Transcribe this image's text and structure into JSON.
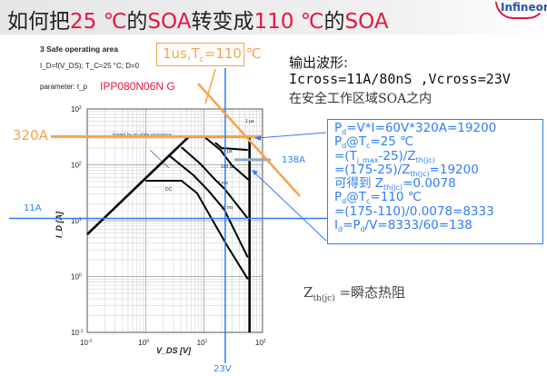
{
  "header": {
    "title_parts": [
      "如何把",
      "25 ℃",
      "的",
      "SOA",
      "转变成",
      "110 ℃",
      "的",
      "SOA"
    ],
    "logo_text": "Infineon"
  },
  "datasheet": {
    "section_title": "3 Safe operating area",
    "condition": "I_D=f(V_DS); T_C=25 °C; D=0",
    "parameter": "parameter: t_p",
    "part_number": "IPP080N06N G"
  },
  "tc_box": {
    "prefix": "1us,T",
    "sub": "c",
    "suffix": "=110 ℃"
  },
  "output": {
    "heading": "输出波形:",
    "cross": "Icross=11A/80nS ,Vcross=23V",
    "note": "在安全工作区域SOA之内"
  },
  "info_box": {
    "lines": [
      [
        {
          "t": "P"
        },
        {
          "t": "d",
          "sub": true
        },
        {
          "t": "=V*I=60V*320A=19200"
        }
      ],
      [
        {
          "t": "P"
        },
        {
          "t": "d",
          "sub": true
        },
        {
          "t": "@T"
        },
        {
          "t": "c",
          "sub": true
        },
        {
          "t": "=25 ℃"
        }
      ],
      [
        {
          "t": "=(T"
        },
        {
          "t": "j_max",
          "sub": true
        },
        {
          "t": "-25)/Z"
        },
        {
          "t": "th(jc)",
          "sub": true
        }
      ],
      [
        {
          "t": "=(175-25)/Z"
        },
        {
          "t": "th(jc)",
          "sub": true
        },
        {
          "t": "=19200"
        }
      ],
      [
        {
          "t": "可得到 Z"
        },
        {
          "t": "th(jc)",
          "sub": true
        },
        {
          "t": "=0.0078"
        }
      ],
      [
        {
          "t": "P"
        },
        {
          "t": "d",
          "sub": true
        },
        {
          "t": "@T"
        },
        {
          "t": "c",
          "sub": true
        },
        {
          "t": "=110 ℃"
        }
      ],
      [
        {
          "t": "=(175-110)/0.0078=8333"
        }
      ],
      [
        {
          "t": "I"
        },
        {
          "t": "d",
          "sub": true
        },
        {
          "t": "=P"
        },
        {
          "t": "d",
          "sub": true
        },
        {
          "t": "/V=8333/60=138"
        }
      ]
    ]
  },
  "zth_note": {
    "main": "Z",
    "sub": "th(jc)",
    "text": " =瞬态热阻"
  },
  "annotations": {
    "current_320": "320A",
    "current_11": "11A",
    "current_138": "138A",
    "voltage_23": "23V"
  },
  "colors": {
    "orange": "#f7a34b",
    "blue": "#2f7df6",
    "red": "#e3173e",
    "grey_bar": "#8fa9c9"
  },
  "chart_data": {
    "type": "line",
    "xscale": "log",
    "yscale": "log",
    "xlim": [
      0.1,
      100
    ],
    "ylim": [
      0.1,
      1000
    ],
    "xlabel": "V_DS [V]",
    "ylabel": "I_D [A]",
    "xticks": [
      "10^-1",
      "10^0",
      "10^1",
      "10^2"
    ],
    "yticks": [
      "10^3",
      "10^2",
      "10^1",
      "10^0",
      "10^-1"
    ],
    "grid": true,
    "limit_label": "limited by on-state resistance",
    "series": [
      {
        "name": "limit",
        "points": [
          [
            0.1,
            5.7
          ],
          [
            5.5,
            320
          ],
          [
            60,
            320
          ],
          [
            60,
            0.1
          ]
        ]
      },
      {
        "name": "1 µs",
        "points": [
          [
            50,
            320
          ],
          [
            60,
            320
          ]
        ]
      },
      {
        "name": "10 µs",
        "points": [
          [
            15.5,
            250
          ],
          [
            20,
            200
          ],
          [
            56,
            185
          ]
        ]
      },
      {
        "name": "100 µs",
        "points": [
          [
            10,
            320
          ],
          [
            19,
            185
          ],
          [
            30,
            98
          ],
          [
            58,
            54
          ]
        ]
      },
      {
        "name": "1 ms",
        "points": [
          [
            4.1,
            207
          ],
          [
            8.5,
            106
          ],
          [
            15.5,
            54
          ],
          [
            22,
            38
          ],
          [
            56,
            11
          ]
        ]
      },
      {
        "name": "10 ms",
        "points": [
          [
            2.6,
            143
          ],
          [
            6.6,
            65
          ],
          [
            12,
            34
          ],
          [
            22,
            16
          ],
          [
            56,
            2.2
          ]
        ]
      },
      {
        "name": "DC",
        "points": [
          [
            1.0,
            52
          ],
          [
            4.1,
            52
          ],
          [
            7.6,
            31
          ],
          [
            13.4,
            11
          ],
          [
            24.7,
            3.6
          ],
          [
            56,
            0.9
          ]
        ]
      }
    ],
    "markers": {
      "current_320": 320,
      "current_11": 11,
      "current_138": 138,
      "voltage_23": 23
    }
  }
}
